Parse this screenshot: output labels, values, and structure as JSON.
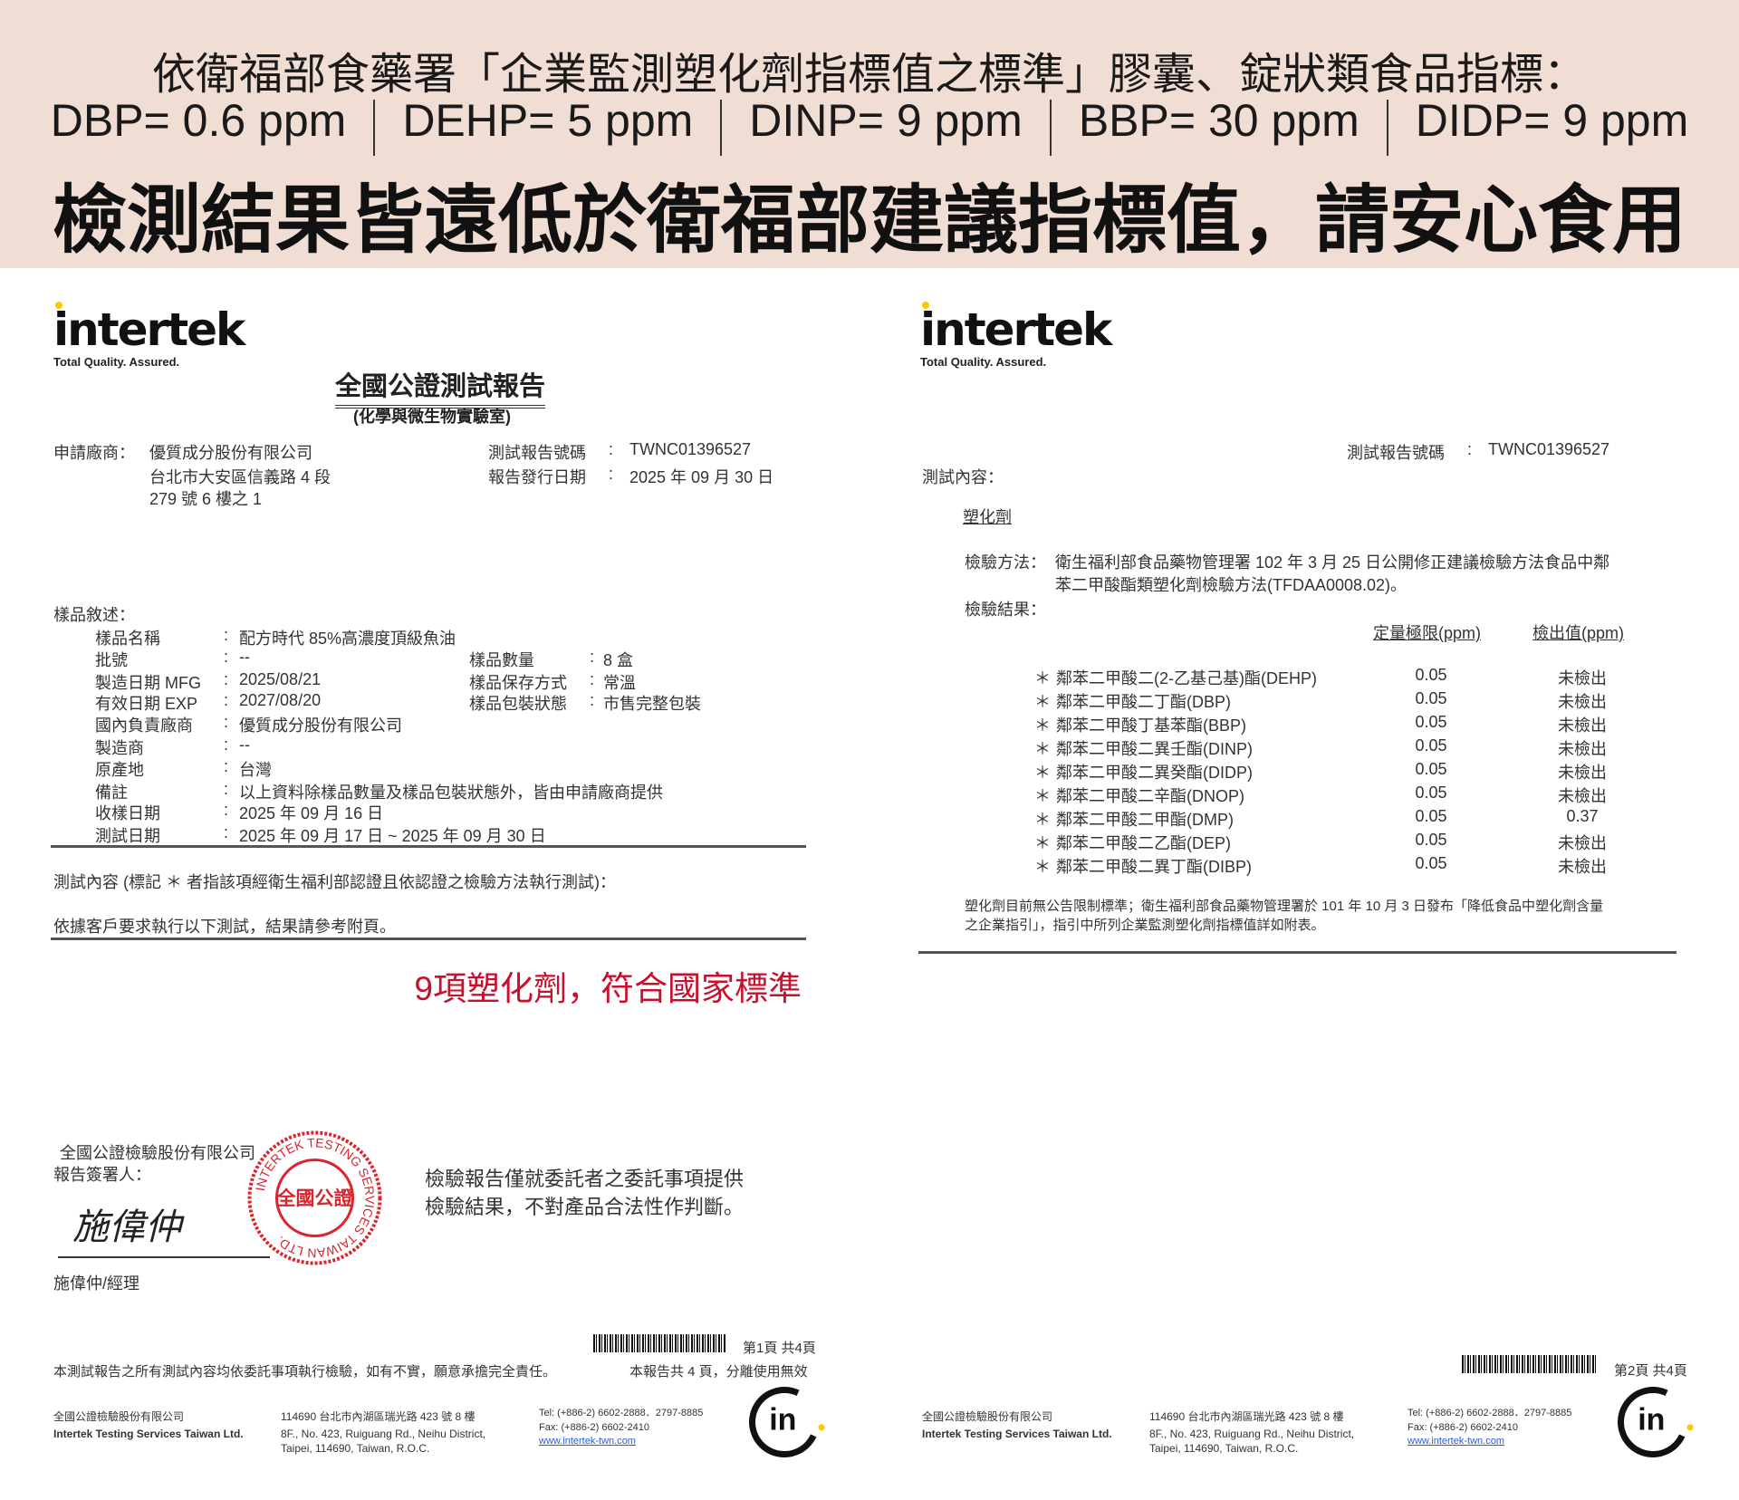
{
  "banner": {
    "line1": "依衛福部食藥署「企業監測塑化劑指標值之標準」膠囊、錠狀類食品指標：",
    "limits": [
      "DBP= 0.6 ppm",
      "DEHP= 5 ppm",
      "DINP= 9 ppm",
      "BBP= 30 ppm",
      "DIDP= 9 ppm"
    ],
    "headline": "檢測結果皆遠低於衛福部建議指標值，請安心食用",
    "bg_color": "#f0ddd3"
  },
  "logo": {
    "name": "intertek",
    "tagline": "Total Quality. Assured."
  },
  "page1": {
    "title": "全國公證測試報告",
    "subtitle": "(化學與微生物實驗室)",
    "applicant_label": "申請廠商：",
    "applicant": [
      "優質成分股份有限公司",
      "台北市大安區信義路 4 段",
      "279 號 6 樓之 1"
    ],
    "report_no_label": "測試報告號碼",
    "report_no": "TWNC01396527",
    "issue_date_label": "報告發行日期",
    "issue_date": "2025 年 09 月 30 日",
    "sample_desc_label": "樣品敘述：",
    "sample_rows": [
      {
        "label": "樣品名稱",
        "value": "配方時代 85%高濃度頂級魚油"
      },
      {
        "label": "批號",
        "value": "--",
        "label2": "樣品數量",
        "value2": "8 盒"
      },
      {
        "label": "製造日期 MFG",
        "value": "2025/08/21",
        "label2": "樣品保存方式",
        "value2": "常溫"
      },
      {
        "label": "有效日期 EXP",
        "value": "2027/08/20",
        "label2": "樣品包裝狀態",
        "value2": "市售完整包裝"
      },
      {
        "label": "國內負責廠商",
        "value": "優質成分股份有限公司"
      },
      {
        "label": "製造商",
        "value": "--"
      },
      {
        "label": "原產地",
        "value": "台灣"
      },
      {
        "label": "備註",
        "value": "以上資料除樣品數量及樣品包裝狀態外，皆由申請廠商提供"
      },
      {
        "label": "收樣日期",
        "value": "2025 年 09 月 16 日"
      },
      {
        "label": "測試日期",
        "value": "2025 年 09 月 17 日 ~ 2025 年 09 月 30 日"
      }
    ],
    "test_content": "測試內容 (標記 ＊ 者指該項經衛生福利部認證且依認證之檢驗方法執行測試)：",
    "test_note": "依據客戶要求執行以下測試，結果請參考附頁。",
    "highlight": "9項塑化劑，符合國家標準",
    "company_sign": "全國公證檢驗股份有限公司",
    "signer_label": "報告簽署人：",
    "signature": "施偉仲",
    "signer": "施偉仲/經理",
    "stamp": {
      "center": "全國公證",
      "ring": "INTERTEK TESTING SERVICES TAIWAN LTD."
    },
    "disclaimer": [
      "檢驗報告僅就委託者之委託事項提供",
      "檢驗結果，不對產品合法性作判斷。"
    ],
    "page_no": "第1頁 共4頁",
    "footer_note": "本測試報告之所有測試內容均依委託事項執行檢驗，如有不實，願意承擔完全責任。",
    "footer_note2": "本報告共 4 頁，分離使用無效"
  },
  "page2": {
    "report_no_label": "測試報告號碼",
    "report_no": "TWNC01396527",
    "test_content_label": "測試內容：",
    "category": "塑化劑",
    "method_label": "檢驗方法：",
    "method": [
      "衛生福利部食品藥物管理署 102 年 3 月 25 日公開修正建議檢驗方法食品中鄰",
      "苯二甲酸酯類塑化劑檢驗方法(TFDAA0008.02)。"
    ],
    "result_label": "檢驗結果：",
    "col_loq": "定量極限(ppm)",
    "col_result": "檢出值(ppm)",
    "rows": [
      {
        "mark": "＊",
        "name": "鄰苯二甲酸二(2-乙基己基)酯(DEHP)",
        "loq": "0.05",
        "result": "未檢出"
      },
      {
        "mark": "＊",
        "name": "鄰苯二甲酸二丁酯(DBP)",
        "loq": "0.05",
        "result": "未檢出"
      },
      {
        "mark": "＊",
        "name": "鄰苯二甲酸丁基苯酯(BBP)",
        "loq": "0.05",
        "result": "未檢出"
      },
      {
        "mark": "＊",
        "name": "鄰苯二甲酸二異壬酯(DINP)",
        "loq": "0.05",
        "result": "未檢出"
      },
      {
        "mark": "＊",
        "name": "鄰苯二甲酸二異癸酯(DIDP)",
        "loq": "0.05",
        "result": "未檢出"
      },
      {
        "mark": "＊",
        "name": "鄰苯二甲酸二辛酯(DNOP)",
        "loq": "0.05",
        "result": "未檢出"
      },
      {
        "mark": "＊",
        "name": "鄰苯二甲酸二甲酯(DMP)",
        "loq": "0.05",
        "result": "0.37"
      },
      {
        "mark": "＊",
        "name": "鄰苯二甲酸二乙酯(DEP)",
        "loq": "0.05",
        "result": "未檢出"
      },
      {
        "mark": "＊",
        "name": "鄰苯二甲酸二異丁酯(DIBP)",
        "loq": "0.05",
        "result": "未檢出"
      }
    ],
    "note": [
      "塑化劑目前無公告限制標準；衛生福利部食品藥物管理署於 101 年 10 月 3 日發布「降低食品中塑化劑含量",
      "之企業指引」，指引中所列企業監測塑化劑指標值詳如附表。"
    ],
    "page_no": "第2頁 共4頁"
  },
  "footer": {
    "company_zh": "全國公證檢驗股份有限公司",
    "company_en": "Intertek Testing Services Taiwan Ltd.",
    "address_zh": "114690 台北市內湖區瑞光路 423 號 8 樓",
    "address_en1": "8F., No. 423, Ruiguang Rd., Neihu District,",
    "address_en2": "Taipei, 114690, Taiwan, R.O.C.",
    "tel": "Tel: (+886-2) 6602-2888．2797-8885",
    "fax": "Fax: (+886-2) 6602-2410",
    "web": "www.intertek-twn.com"
  },
  "colors": {
    "highlight": "#c8102e",
    "stamp": "#d9262e",
    "logo_dot": "#ffc700",
    "link": "#2a5bd7"
  }
}
